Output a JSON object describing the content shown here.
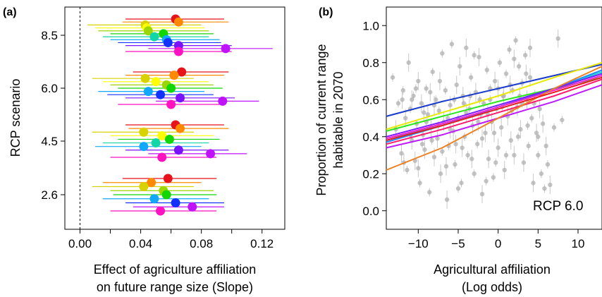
{
  "chart_data": [
    {
      "type": "scatter",
      "panel_label": "(a)",
      "xlabel_lines": [
        "Effect of agriculture affiliation",
        "on future range size (Slope)"
      ],
      "ylabel": "RCP scenario",
      "xlim": [
        -0.01,
        0.135
      ],
      "x_ticks": [
        0.0,
        0.04,
        0.08,
        0.12
      ],
      "x_tick_labels": [
        "0.00",
        "0.04",
        "0.08",
        "0.12"
      ],
      "x_minor_ticks": [
        0.02,
        0.06,
        0.1
      ],
      "reference_line_x": 0.0,
      "categories": [
        "8.5",
        "6.0",
        "4.5",
        "2.6"
      ],
      "series_colors": [
        "#e8121b",
        "#ff8a00",
        "#d8d200",
        "#ffff00",
        "#9bd600",
        "#12d600",
        "#12d6a8",
        "#12a8ff",
        "#1233ff",
        "#7a12ff",
        "#c012ff",
        "#ff12c0",
        "#ff1285"
      ],
      "groups": [
        {
          "scenario": "8.5",
          "points": [
            {
              "est": 0.063,
              "lo": 0.03,
              "hi": 0.095
            },
            {
              "est": 0.065,
              "lo": 0.028,
              "hi": 0.098
            },
            {
              "est": 0.043,
              "lo": 0.005,
              "hi": 0.08
            },
            {
              "est": 0.044,
              "lo": 0.01,
              "hi": 0.082
            },
            {
              "est": 0.045,
              "lo": 0.012,
              "hi": 0.085
            },
            {
              "est": 0.055,
              "lo": 0.02,
              "hi": 0.088
            },
            {
              "est": 0.049,
              "lo": 0.015,
              "hi": 0.085
            },
            {
              "est": 0.057,
              "lo": 0.02,
              "hi": 0.092
            },
            {
              "est": 0.058,
              "lo": 0.025,
              "hi": 0.093
            },
            {
              "est": 0.065,
              "lo": 0.03,
              "hi": 0.1
            },
            {
              "est": 0.096,
              "lo": 0.045,
              "hi": 0.127
            },
            {
              "est": 0.065,
              "lo": 0.03,
              "hi": 0.1
            }
          ]
        },
        {
          "scenario": "6.0",
          "points": [
            {
              "est": 0.067,
              "lo": 0.035,
              "hi": 0.098
            },
            {
              "est": 0.062,
              "lo": 0.03,
              "hi": 0.095
            },
            {
              "est": 0.043,
              "lo": 0.008,
              "hi": 0.075
            },
            {
              "est": 0.05,
              "lo": 0.015,
              "hi": 0.085
            },
            {
              "est": 0.057,
              "lo": 0.02,
              "hi": 0.088
            },
            {
              "est": 0.06,
              "lo": 0.025,
              "hi": 0.094
            },
            {
              "est": 0.045,
              "lo": 0.012,
              "hi": 0.082
            },
            {
              "est": 0.053,
              "lo": 0.018,
              "hi": 0.088
            },
            {
              "est": 0.066,
              "lo": 0.03,
              "hi": 0.102
            },
            {
              "est": 0.094,
              "lo": 0.05,
              "hi": 0.118
            },
            {
              "est": 0.06,
              "lo": 0.025,
              "hi": 0.095
            }
          ]
        },
        {
          "scenario": "4.5",
          "points": [
            {
              "est": 0.063,
              "lo": 0.03,
              "hi": 0.095
            },
            {
              "est": 0.066,
              "lo": 0.032,
              "hi": 0.098
            },
            {
              "est": 0.042,
              "lo": 0.008,
              "hi": 0.075
            },
            {
              "est": 0.054,
              "lo": 0.02,
              "hi": 0.088
            },
            {
              "est": 0.059,
              "lo": 0.025,
              "hi": 0.092
            },
            {
              "est": 0.05,
              "lo": 0.015,
              "hi": 0.085
            },
            {
              "est": 0.042,
              "lo": 0.01,
              "hi": 0.08
            },
            {
              "est": 0.065,
              "lo": 0.03,
              "hi": 0.098
            },
            {
              "est": 0.086,
              "lo": 0.045,
              "hi": 0.11
            },
            {
              "est": 0.054,
              "lo": 0.02,
              "hi": 0.09
            }
          ]
        },
        {
          "scenario": "2.6",
          "points": [
            {
              "est": 0.058,
              "lo": 0.028,
              "hi": 0.09
            },
            {
              "est": 0.047,
              "lo": 0.015,
              "hi": 0.08
            },
            {
              "est": 0.042,
              "lo": 0.008,
              "hi": 0.075
            },
            {
              "est": 0.055,
              "lo": 0.02,
              "hi": 0.088
            },
            {
              "est": 0.057,
              "lo": 0.022,
              "hi": 0.09
            },
            {
              "est": 0.049,
              "lo": 0.015,
              "hi": 0.085
            },
            {
              "est": 0.063,
              "lo": 0.03,
              "hi": 0.095
            },
            {
              "est": 0.074,
              "lo": 0.035,
              "hi": 0.095
            },
            {
              "est": 0.053,
              "lo": 0.02,
              "hi": 0.09
            }
          ]
        }
      ]
    },
    {
      "type": "scatter",
      "panel_label": "(b)",
      "xlabel_lines": [
        "Agricultural affiliation",
        "(Log odds)"
      ],
      "ylabel_lines": [
        "Proportion of current range",
        "habitable in 2070"
      ],
      "annotation": "RCP 6.0",
      "xlim": [
        -14,
        13
      ],
      "ylim": [
        -0.1,
        1.1
      ],
      "x_ticks": [
        -10,
        -5,
        0,
        5,
        10
      ],
      "x_tick_labels": [
        "−10",
        "−5",
        "0",
        "5",
        "10"
      ],
      "y_ticks": [
        0.0,
        0.2,
        0.4,
        0.6,
        0.8,
        1.0
      ],
      "y_tick_labels": [
        "0.0",
        "0.2",
        "0.4",
        "0.6",
        "0.8",
        "1.0"
      ],
      "point_color": "#b0b0b0",
      "lines": [
        {
          "color": "#1a3ccc",
          "x": [
            -14,
            -7,
            0,
            7,
            13
          ],
          "y": [
            0.51,
            0.59,
            0.66,
            0.73,
            0.79
          ]
        },
        {
          "color": "#e8e800",
          "x": [
            -14,
            -7,
            0,
            7,
            13
          ],
          "y": [
            0.44,
            0.53,
            0.62,
            0.72,
            0.8
          ]
        },
        {
          "color": "#29e81a",
          "x": [
            -14,
            -7,
            0,
            7,
            13
          ],
          "y": [
            0.43,
            0.51,
            0.59,
            0.66,
            0.72
          ]
        },
        {
          "color": "#1ad6c8",
          "x": [
            -14,
            -7,
            0,
            7,
            13
          ],
          "y": [
            0.38,
            0.47,
            0.56,
            0.66,
            0.75
          ]
        },
        {
          "color": "#1a8cff",
          "x": [
            -14,
            -7,
            0,
            7,
            13
          ],
          "y": [
            0.37,
            0.46,
            0.56,
            0.66,
            0.76
          ]
        },
        {
          "color": "#7a1aff",
          "x": [
            -14,
            -7,
            0,
            7,
            13
          ],
          "y": [
            0.4,
            0.48,
            0.57,
            0.66,
            0.74
          ]
        },
        {
          "color": "#ff1ad0",
          "x": [
            -14,
            -7,
            0,
            7,
            13
          ],
          "y": [
            0.39,
            0.47,
            0.56,
            0.65,
            0.73
          ]
        },
        {
          "color": "#ff1a70",
          "x": [
            -14,
            -7,
            0,
            7,
            13
          ],
          "y": [
            0.36,
            0.44,
            0.53,
            0.62,
            0.71
          ]
        },
        {
          "color": "#c01aff",
          "x": [
            -14,
            -7,
            0,
            7,
            13
          ],
          "y": [
            0.34,
            0.41,
            0.5,
            0.59,
            0.68
          ]
        },
        {
          "color": "#ee8020",
          "x": [
            -14,
            -7,
            0,
            7,
            13
          ],
          "y": [
            0.22,
            0.34,
            0.5,
            0.66,
            0.78
          ]
        },
        {
          "color": "#e81a1a",
          "x": [
            -14,
            -7,
            0,
            7,
            13
          ],
          "y": [
            0.38,
            0.46,
            0.55,
            0.64,
            0.72
          ]
        }
      ],
      "points": [
        [
          -13.2,
          0.72
        ],
        [
          -12.8,
          0.44
        ],
        [
          -12.5,
          0.58
        ],
        [
          -12.1,
          0.31
        ],
        [
          -11.9,
          0.65
        ],
        [
          -11.6,
          0.5
        ],
        [
          -11.4,
          0.22
        ],
        [
          -11.2,
          0.8
        ],
        [
          -11.0,
          0.55
        ],
        [
          -10.8,
          0.38
        ],
        [
          -10.6,
          0.62
        ],
        [
          -10.4,
          0.27
        ],
        [
          -10.2,
          0.47
        ],
        [
          -10.0,
          0.7
        ],
        [
          -9.8,
          0.15
        ],
        [
          -9.6,
          0.58
        ],
        [
          -9.4,
          0.41
        ],
        [
          -9.2,
          0.33
        ],
        [
          -9.0,
          0.66
        ],
        [
          -8.8,
          0.52
        ],
        [
          -8.6,
          0.1
        ],
        [
          -8.4,
          0.45
        ],
        [
          -8.2,
          0.75
        ],
        [
          -8.0,
          0.29
        ],
        [
          -7.8,
          0.6
        ],
        [
          -7.6,
          0.39
        ],
        [
          -7.4,
          0.54
        ],
        [
          -7.2,
          0.2
        ],
        [
          -7.0,
          0.85
        ],
        [
          -6.8,
          0.48
        ],
        [
          -6.6,
          0.65
        ],
        [
          -6.4,
          0.06
        ],
        [
          -6.2,
          0.35
        ],
        [
          -6.0,
          0.57
        ],
        [
          -5.8,
          0.9
        ],
        [
          -5.6,
          0.43
        ],
        [
          -5.4,
          0.25
        ],
        [
          -5.2,
          0.68
        ],
        [
          -5.0,
          0.5
        ],
        [
          -4.8,
          0.78
        ],
        [
          -4.6,
          0.15
        ],
        [
          -4.4,
          0.62
        ],
        [
          -4.2,
          0.4
        ],
        [
          -4.0,
          0.88
        ],
        [
          -3.8,
          0.3
        ],
        [
          -3.6,
          0.55
        ],
        [
          -3.4,
          0.72
        ],
        [
          -3.2,
          0.46
        ],
        [
          -3.0,
          0.2
        ],
        [
          -2.8,
          0.64
        ],
        [
          -2.6,
          0.36
        ],
        [
          -2.4,
          0.83
        ],
        [
          -2.2,
          0.52
        ],
        [
          -2.0,
          0.09
        ],
        [
          -1.8,
          0.58
        ],
        [
          -1.6,
          0.42
        ],
        [
          -1.4,
          0.76
        ],
        [
          -1.2,
          0.28
        ],
        [
          -1.0,
          0.66
        ],
        [
          -0.8,
          0.48
        ],
        [
          -0.6,
          0.18
        ],
        [
          -0.4,
          0.7
        ],
        [
          -0.2,
          0.55
        ],
        [
          0.0,
          0.34
        ],
        [
          0.2,
          0.8
        ],
        [
          0.4,
          0.45
        ],
        [
          0.6,
          0.62
        ],
        [
          0.8,
          0.22
        ],
        [
          1.0,
          0.74
        ],
        [
          1.2,
          0.51
        ],
        [
          1.4,
          0.87
        ],
        [
          1.6,
          0.38
        ],
        [
          1.8,
          0.65
        ],
        [
          2.0,
          0.3
        ],
        [
          2.2,
          0.92
        ],
        [
          2.4,
          0.56
        ],
        [
          2.6,
          0.78
        ],
        [
          2.8,
          0.44
        ],
        [
          3.0,
          0.69
        ],
        [
          3.2,
          0.26
        ],
        [
          3.4,
          0.84
        ],
        [
          3.6,
          0.6
        ],
        [
          3.8,
          0.35
        ],
        [
          4.0,
          0.72
        ],
        [
          4.2,
          0.5
        ],
        [
          4.4,
          0.15
        ],
        [
          4.6,
          0.63
        ],
        [
          4.8,
          0.42
        ],
        [
          5.0,
          0.3
        ],
        [
          5.2,
          0.55
        ],
        [
          5.4,
          0.2
        ],
        [
          5.6,
          0.47
        ],
        [
          5.8,
          0.12
        ],
        [
          6.0,
          0.35
        ],
        [
          6.2,
          0.25
        ],
        [
          6.5,
          0.14
        ],
        [
          7.0,
          0.45
        ],
        [
          7.5,
          0.93
        ],
        [
          8.0,
          0.49
        ],
        [
          -12.0,
          0.6
        ],
        [
          -11.0,
          0.41
        ],
        [
          -10.0,
          0.23
        ],
        [
          -9.0,
          0.48
        ],
        [
          -8.0,
          0.57
        ],
        [
          -7.0,
          0.32
        ],
        [
          -6.0,
          0.44
        ],
        [
          -5.0,
          0.12
        ],
        [
          -4.0,
          0.53
        ],
        [
          -3.0,
          0.84
        ],
        [
          -2.0,
          0.39
        ],
        [
          -1.0,
          0.6
        ],
        [
          0.0,
          0.66
        ],
        [
          1.0,
          0.3
        ],
        [
          2.0,
          0.82
        ],
        [
          3.0,
          0.58
        ],
        [
          4.0,
          0.88
        ],
        [
          5.0,
          0.4
        ],
        [
          -10.8,
          0.6
        ],
        [
          -9.5,
          0.36
        ],
        [
          -8.5,
          0.64
        ],
        [
          -7.5,
          0.46
        ],
        [
          -6.5,
          0.24
        ],
        [
          -5.5,
          0.6
        ],
        [
          -4.5,
          0.34
        ],
        [
          -3.5,
          0.62
        ],
        [
          -2.5,
          0.48
        ],
        [
          -1.5,
          0.16
        ],
        [
          -0.5,
          0.42
        ],
        [
          0.5,
          0.56
        ],
        [
          1.5,
          0.68
        ],
        [
          2.5,
          0.4
        ],
        [
          3.5,
          0.74
        ],
        [
          4.5,
          0.58
        ],
        [
          -11.8,
          0.26
        ],
        [
          -10.3,
          0.66
        ],
        [
          -9.3,
          0.53
        ],
        [
          -8.3,
          0.38
        ],
        [
          -7.3,
          0.7
        ],
        [
          -6.3,
          0.5
        ],
        [
          -5.3,
          0.36
        ],
        [
          -4.3,
          0.58
        ],
        [
          -3.3,
          0.28
        ],
        [
          -2.3,
          0.6
        ],
        [
          -1.3,
          0.52
        ],
        [
          -0.3,
          0.26
        ],
        [
          0.7,
          0.62
        ],
        [
          1.7,
          0.54
        ],
        [
          2.7,
          0.62
        ],
        [
          3.7,
          0.46
        ]
      ]
    }
  ]
}
